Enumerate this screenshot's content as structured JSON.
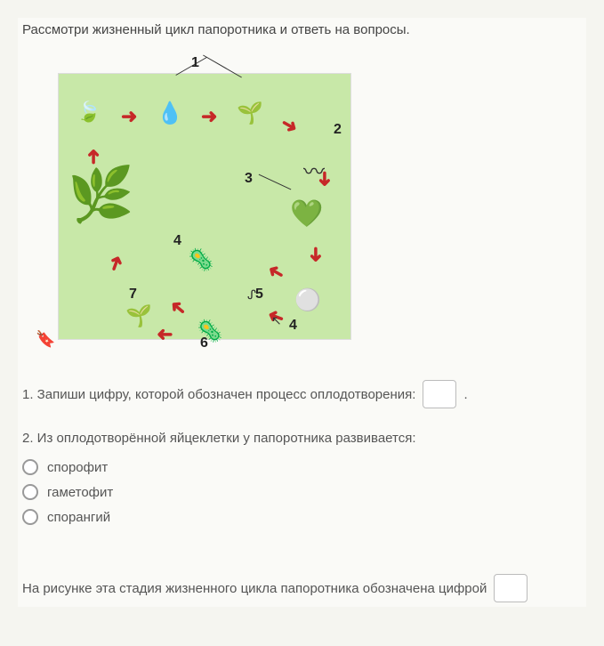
{
  "prompt": "Рассмотри жизненный цикл папоротника и ответь на вопросы.",
  "diagram": {
    "background": "#c8e8a8",
    "labels": {
      "l1": "1",
      "l2": "2",
      "l3": "3",
      "l4": "4",
      "l4b": "4",
      "l5": "5",
      "l6": "6",
      "l7": "7"
    },
    "arrows_color": "#c62828",
    "organisms": {
      "fern": "🌿",
      "sorus": "🍃",
      "spore1": "💧",
      "spore2": "🌱",
      "germ": "〰",
      "heart": "💚",
      "gameto1": "🦠",
      "gameto2": "⚪",
      "gameto3": "🦠",
      "young": "🌱",
      "sperm": "ᔑ"
    },
    "arrow_glyph": "➜",
    "bookmark": "🔖",
    "cursor": "↖"
  },
  "question1": {
    "text": "1. Запиши цифру, которой обозначен процесс оплодотворения:",
    "period": "."
  },
  "question2": {
    "text": "2. Из оплодотворённой яйцеклетки у папоротника развивается:",
    "options": {
      "opt1": "спорофит",
      "opt2": "гаметофит",
      "opt3": "спорангий"
    }
  },
  "footer": {
    "text": "На рисунке эта стадия жизненного цикла папоротника обозначена цифрой"
  }
}
